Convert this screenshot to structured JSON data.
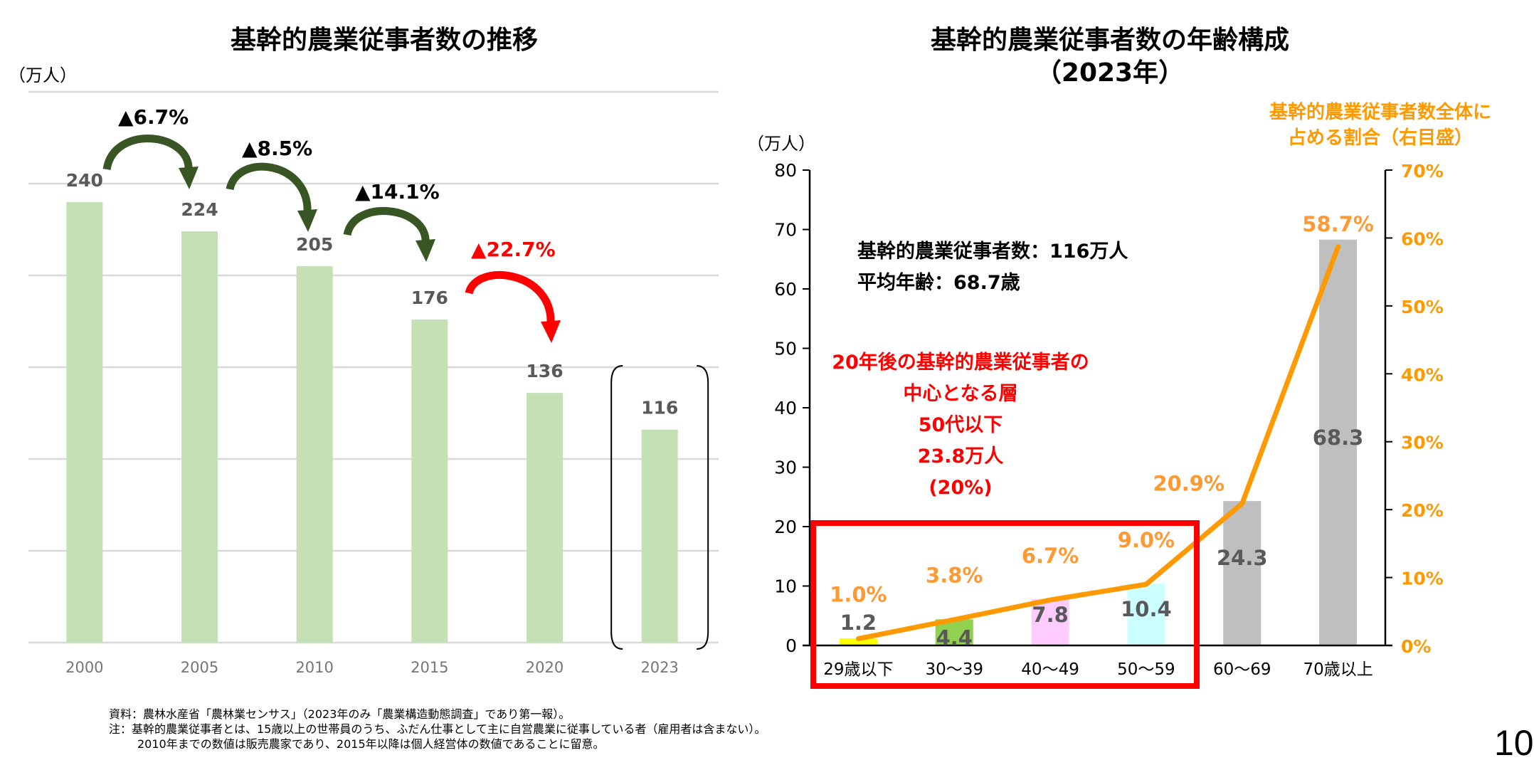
{
  "left": {
    "title": "基幹的農業従事者数の推移",
    "unit": "（万人）"
  },
  "right": {
    "title_line1": "基幹的農業従事者数の年齢構成",
    "title_line2": "（2023年）",
    "unit": "（万人）",
    "summary_line1": "基幹的農業従事者数：116万人",
    "summary_line2": "平均年齢：68.7歳",
    "highlight_lines": [
      "20年後の基幹的農業従事者の",
      "中心となる層",
      "50代以下",
      "23.8万人",
      "(20%)"
    ],
    "ratio_legend_line1": "基幹的農業従事者数全体に",
    "ratio_legend_line2": "占める割合（右目盛）"
  },
  "notes": {
    "line1": "資料：農林水産省「農林業センサス」（2023年のみ「農業構造動態調査」であり第一報）。",
    "line2": "注：基幹的農業従事者とは、15歳以上の世帯員のうち、ふだん仕事として主に自営農業に従事している者（雇用者は含まない）。",
    "line3": "2010年までの数値は販売農家であり、2015年以降は個人経営体の数値であることに留意。"
  },
  "page_number": "10",
  "colors": {
    "bar_green": "#c5e0b4",
    "arrow_green": "#375623",
    "arrow_red": "#ff0000",
    "orange": "#ff9900",
    "orange_label": "#ff9933",
    "gray_bar": "#bfbfbf",
    "highlight_red": "#ff0000"
  },
  "chart_data": [
    {
      "type": "bar",
      "title": "基幹的農業従事者数の推移",
      "ylabel": "（万人）",
      "xlabel": "",
      "categories": [
        "2000",
        "2005",
        "2010",
        "2015",
        "2020",
        "2023"
      ],
      "values": [
        240,
        224,
        205,
        176,
        136,
        116
      ],
      "ylim": [
        0,
        300
      ],
      "ygrid_step": 50,
      "grid": true,
      "y_ticks_shown": false,
      "highlighted_category": "2023",
      "change_annotations": [
        {
          "from": "2000",
          "to": "2005",
          "label": "▲6.7%",
          "color": "green"
        },
        {
          "from": "2005",
          "to": "2010",
          "label": "▲8.5%",
          "color": "green"
        },
        {
          "from": "2010",
          "to": "2015",
          "label": "▲14.1%",
          "color": "green"
        },
        {
          "from": "2015",
          "to": "2020",
          "label": "▲22.7%",
          "color": "red"
        }
      ]
    },
    {
      "type": "bar+line",
      "title": "基幹的農業従事者数の年齢構成（2023年）",
      "ylabel": "（万人）",
      "y2label": "基幹的農業従事者数全体に占める割合（右目盛）",
      "categories": [
        "29歳以下",
        "30～39",
        "40～49",
        "50～59",
        "60～69",
        "70歳以上"
      ],
      "series": [
        {
          "name": "基幹的農業従事者数（万人）",
          "type": "bar",
          "axis": "left",
          "values": [
            1.2,
            4.4,
            7.8,
            10.4,
            24.3,
            68.3
          ],
          "colors": [
            "#ffff00",
            "#92d050",
            "#ffccff",
            "#ccffff",
            "#bfbfbf",
            "#bfbfbf"
          ]
        },
        {
          "name": "全体に占める割合",
          "type": "line",
          "axis": "right",
          "values": [
            1.0,
            3.8,
            6.7,
            9.0,
            20.9,
            58.7
          ],
          "labels": [
            "1.0%",
            "3.8%",
            "6.7%",
            "9.0%",
            "20.9%",
            "58.7%"
          ]
        }
      ],
      "ylim": [
        0,
        80
      ],
      "y_ticks": [
        "0",
        "10",
        "20",
        "30",
        "40",
        "50",
        "60",
        "70",
        "80"
      ],
      "y2lim": [
        0,
        70
      ],
      "y2_ticks": [
        "0%",
        "10%",
        "20%",
        "30%",
        "40%",
        "50%",
        "60%",
        "70%"
      ],
      "grid": false,
      "highlight_box_categories": [
        "29歳以下",
        "30～39",
        "40～49",
        "50～59"
      ]
    }
  ]
}
